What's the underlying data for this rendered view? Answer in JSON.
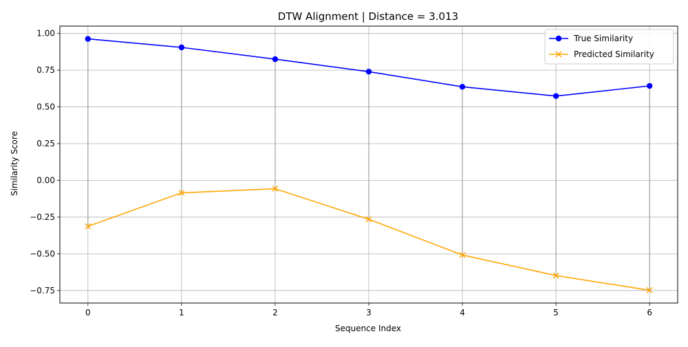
{
  "chart_data": {
    "type": "line",
    "title": "DTW Alignment | Distance = 3.013",
    "xlabel": "Sequence Index",
    "ylabel": "Similarity Score",
    "x": [
      0,
      1,
      2,
      3,
      4,
      5,
      6
    ],
    "xlim": [
      -0.3,
      6.3
    ],
    "ylim": [
      -0.835,
      1.05
    ],
    "x_ticks": [
      0,
      1,
      2,
      3,
      4,
      5,
      6
    ],
    "y_ticks": [
      -0.75,
      -0.5,
      -0.25,
      0.0,
      0.25,
      0.5,
      0.75,
      1.0
    ],
    "y_tick_labels": [
      "−0.75",
      "−0.50",
      "−0.25",
      "0.00",
      "0.25",
      "0.50",
      "0.75",
      "1.00"
    ],
    "grid": true,
    "legend_position": "top-right",
    "series": [
      {
        "name": "True Similarity",
        "color": "#0000ff",
        "marker": "circle",
        "values": [
          0.963,
          0.905,
          0.825,
          0.74,
          0.637,
          0.574,
          0.643
        ]
      },
      {
        "name": "Predicted Similarity",
        "color": "#ffa500",
        "marker": "x",
        "values": [
          -0.313,
          -0.085,
          -0.057,
          -0.265,
          -0.508,
          -0.648,
          -0.748
        ]
      }
    ],
    "alignment_pairs": [
      [
        0,
        0
      ],
      [
        1,
        1
      ],
      [
        2,
        2
      ],
      [
        3,
        3
      ],
      [
        4,
        4
      ],
      [
        5,
        5
      ],
      [
        6,
        6
      ]
    ],
    "alignment_color": "#a0a0a0"
  }
}
